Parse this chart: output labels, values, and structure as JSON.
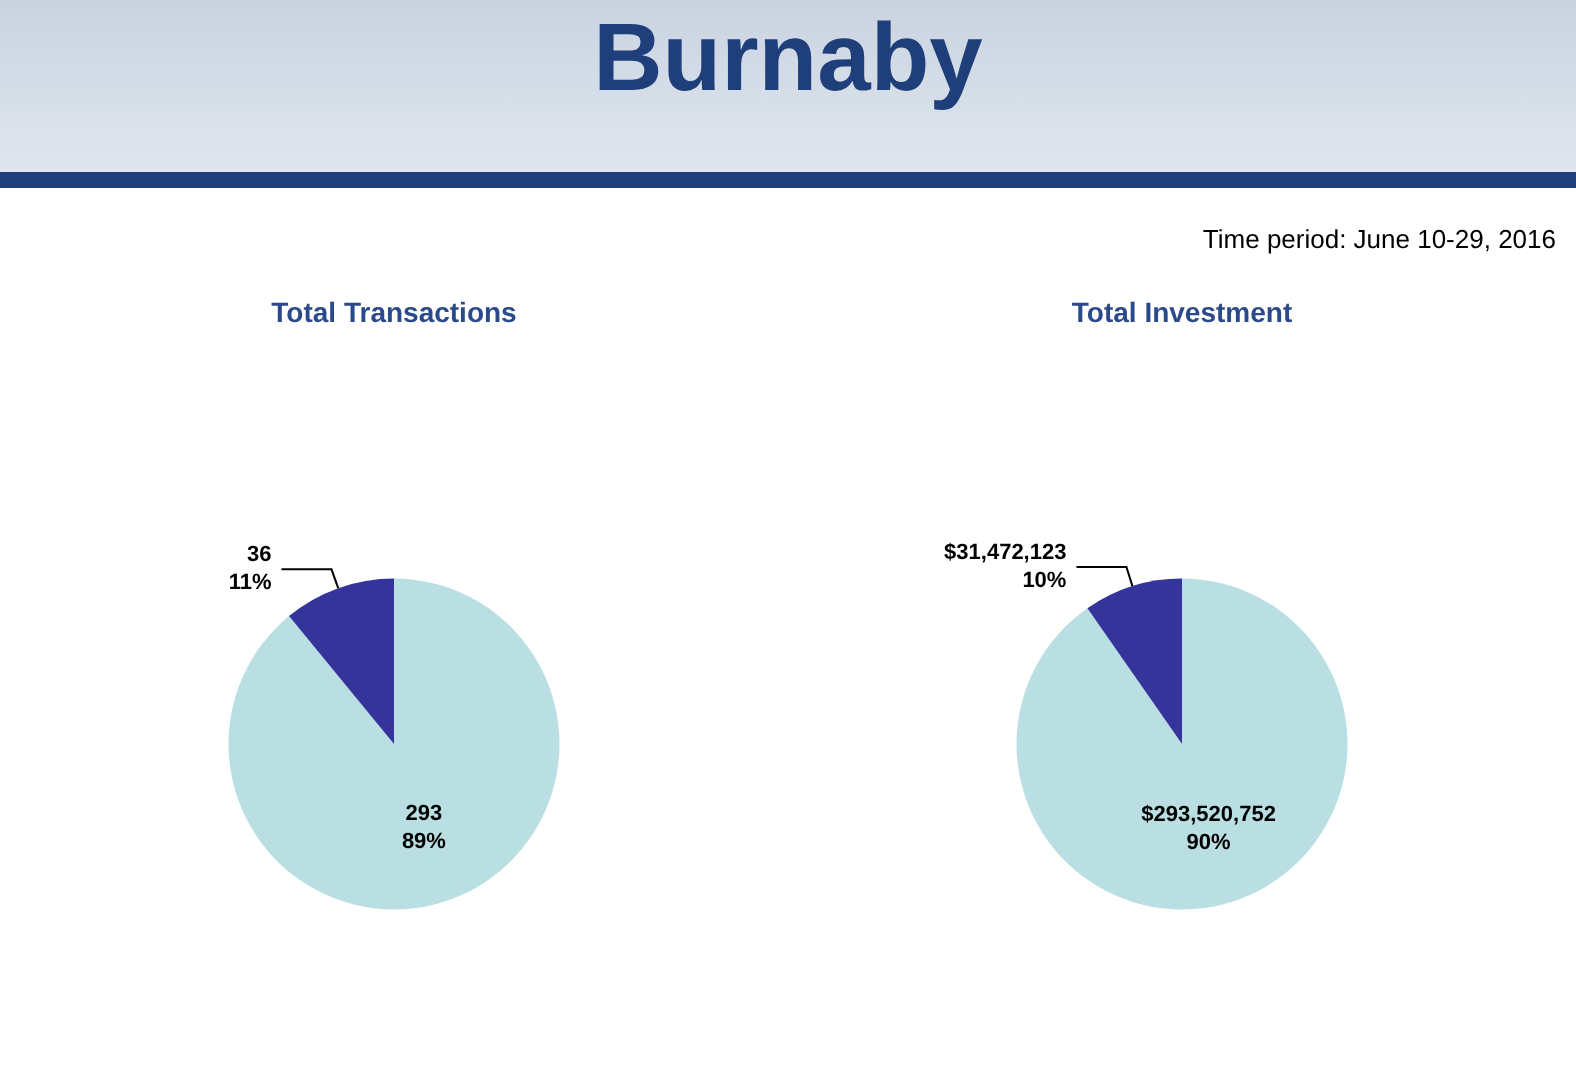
{
  "chart_data": [
    {
      "type": "other",
      "title": "Burnaby",
      "annotations": [
        "Time period: June 10-29, 2016"
      ]
    },
    {
      "type": "pie",
      "title": "Total Transactions",
      "categories": [
        null,
        null
      ],
      "values": [
        293,
        36
      ],
      "colors": [
        "#b9dfe3",
        "#34349a"
      ],
      "value_labels": [
        "293\n89%",
        "36\n11%"
      ]
    },
    {
      "type": "pie",
      "title": "Total Investment",
      "categories": [
        null,
        null
      ],
      "values": [
        293520752,
        31472123
      ],
      "colors": [
        "#b9dfe3",
        "#34349a"
      ],
      "value_labels": [
        "$293,520,752\n90%",
        "$31,472,123\n10%"
      ]
    }
  ]
}
